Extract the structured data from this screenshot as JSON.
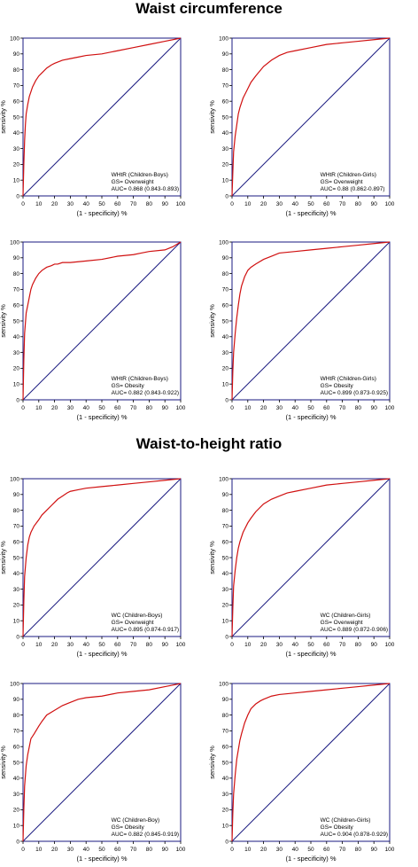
{
  "sections": [
    {
      "title": "Waist circumference"
    },
    {
      "title": "Waist-to-height ratio"
    }
  ],
  "colors": {
    "curve": "#d01010",
    "diagonal": "#1a1a80",
    "frame": "#1a1a80"
  },
  "chart_data": [
    {
      "type": "line",
      "xlabel": "(1 - specificity) %",
      "ylabel": "sensivity %",
      "xlim": [
        0,
        100
      ],
      "ylim": [
        0,
        100
      ],
      "xticks": [
        0,
        10,
        20,
        30,
        40,
        50,
        60,
        70,
        80,
        90,
        100
      ],
      "yticks": [
        0,
        10,
        20,
        30,
        40,
        50,
        60,
        70,
        80,
        90,
        100
      ],
      "annotation": [
        "WHtR (Children-Boys)",
        "GS= Overweight",
        "AUC= 0.868 (0.843-0.893)"
      ],
      "series": [
        {
          "x": [
            0,
            0.5,
            1,
            1.5,
            2,
            3,
            4,
            5,
            6,
            8,
            10,
            12,
            15,
            18,
            20,
            25,
            30,
            35,
            40,
            50,
            60,
            70,
            80,
            90,
            100
          ],
          "y": [
            0,
            20,
            35,
            45,
            52,
            58,
            63,
            66,
            69,
            73,
            76,
            78,
            81,
            83,
            84,
            86,
            87,
            88,
            89,
            90,
            92,
            94,
            96,
            98,
            100
          ]
        }
      ]
    },
    {
      "type": "line",
      "xlabel": "(1 - specificity) %",
      "ylabel": "sensivity %",
      "xlim": [
        0,
        100
      ],
      "ylim": [
        0,
        100
      ],
      "xticks": [
        0,
        10,
        20,
        30,
        40,
        50,
        60,
        70,
        80,
        90,
        100
      ],
      "yticks": [
        0,
        10,
        20,
        30,
        40,
        50,
        60,
        70,
        80,
        90,
        100
      ],
      "annotation": [
        "WHtR (Children-Girls)",
        "GS= Overweight",
        "AUC= 0.88 (0.862-0.897)"
      ],
      "series": [
        {
          "x": [
            0,
            0.5,
            1,
            2,
            3,
            4,
            5,
            7,
            10,
            12,
            15,
            20,
            25,
            30,
            35,
            40,
            50,
            60,
            70,
            80,
            90,
            100
          ],
          "y": [
            0,
            15,
            28,
            38,
            45,
            52,
            56,
            62,
            68,
            72,
            76,
            82,
            86,
            89,
            91,
            92,
            94,
            96,
            97,
            98,
            99,
            100
          ]
        }
      ]
    },
    {
      "type": "line",
      "xlabel": "(1 - specificity) %",
      "ylabel": "sensivity %",
      "xlim": [
        0,
        100
      ],
      "ylim": [
        0,
        100
      ],
      "xticks": [
        0,
        10,
        20,
        30,
        40,
        50,
        60,
        70,
        80,
        90,
        100
      ],
      "yticks": [
        0,
        10,
        20,
        30,
        40,
        50,
        60,
        70,
        80,
        90,
        100
      ],
      "annotation": [
        "WHtR (Children-Boys)",
        "GS= Obesity",
        "AUC= 0.882 (0.843-0.922)"
      ],
      "series": [
        {
          "x": [
            0,
            0.5,
            1,
            2,
            3,
            4,
            5,
            6,
            8,
            10,
            12,
            15,
            18,
            20,
            22,
            25,
            30,
            40,
            50,
            60,
            70,
            75,
            80,
            90,
            95,
            100
          ],
          "y": [
            0,
            25,
            42,
            55,
            60,
            65,
            70,
            73,
            77,
            80,
            82,
            84,
            85,
            86,
            86,
            87,
            87,
            88,
            89,
            91,
            92,
            93,
            94,
            95,
            97,
            100
          ]
        }
      ]
    },
    {
      "type": "line",
      "xlabel": "(1 - specificity) %",
      "ylabel": "sensivity %",
      "xlim": [
        0,
        100
      ],
      "ylim": [
        0,
        100
      ],
      "xticks": [
        0,
        10,
        20,
        30,
        40,
        50,
        60,
        70,
        80,
        90,
        100
      ],
      "yticks": [
        0,
        10,
        20,
        30,
        40,
        50,
        60,
        70,
        80,
        90,
        100
      ],
      "annotation": [
        "WHtR (Children-Girls)",
        "GS= Obesity",
        "AUC= 0.899 (0.873-0.925)"
      ],
      "series": [
        {
          "x": [
            0,
            0.5,
            1,
            2,
            3,
            4,
            5,
            6,
            8,
            10,
            12,
            15,
            20,
            25,
            30,
            40,
            50,
            60,
            70,
            80,
            90,
            100
          ],
          "y": [
            0,
            18,
            30,
            42,
            52,
            60,
            67,
            72,
            78,
            82,
            84,
            86,
            89,
            91,
            93,
            94,
            95,
            96,
            97,
            98,
            99,
            100
          ]
        }
      ]
    },
    {
      "type": "line",
      "xlabel": "(1 - specificity) %",
      "ylabel": "sensivity %",
      "xlim": [
        0,
        100
      ],
      "ylim": [
        0,
        100
      ],
      "xticks": [
        0,
        10,
        20,
        30,
        40,
        50,
        60,
        70,
        80,
        90,
        100
      ],
      "yticks": [
        0,
        10,
        20,
        30,
        40,
        50,
        60,
        70,
        80,
        90,
        100
      ],
      "annotation": [
        "WC (Children-Boys)",
        "GS= Overweight",
        "AUC= 0.895 (0.874-0.917)"
      ],
      "series": [
        {
          "x": [
            0,
            0.5,
            1,
            2,
            3,
            4,
            5,
            7,
            10,
            12,
            15,
            18,
            20,
            22,
            25,
            28,
            30,
            35,
            40,
            50,
            60,
            70,
            80,
            90,
            100
          ],
          "y": [
            0,
            22,
            38,
            50,
            58,
            63,
            66,
            70,
            74,
            77,
            80,
            83,
            85,
            87,
            89,
            91,
            92,
            93,
            94,
            95,
            96,
            97,
            98,
            99,
            100
          ]
        }
      ]
    },
    {
      "type": "line",
      "xlabel": "(1 - specificity) %",
      "ylabel": "sensivity %",
      "xlim": [
        0,
        100
      ],
      "ylim": [
        0,
        100
      ],
      "xticks": [
        0,
        10,
        20,
        30,
        40,
        50,
        60,
        70,
        80,
        90,
        100
      ],
      "yticks": [
        0,
        10,
        20,
        30,
        40,
        50,
        60,
        70,
        80,
        90,
        100
      ],
      "annotation": [
        "WC (Children-Girls)",
        "GS= Overweight",
        "AUC= 0.889 (0.872-0.906)"
      ],
      "series": [
        {
          "x": [
            0,
            0.5,
            1,
            2,
            3,
            4,
            5,
            7,
            10,
            12,
            15,
            20,
            25,
            30,
            35,
            40,
            50,
            60,
            70,
            80,
            90,
            100
          ],
          "y": [
            0,
            18,
            32,
            42,
            50,
            56,
            60,
            66,
            72,
            75,
            79,
            84,
            87,
            89,
            91,
            92,
            94,
            96,
            97,
            98,
            99,
            100
          ]
        }
      ]
    },
    {
      "type": "line",
      "xlabel": "(1 - specificity) %",
      "ylabel": "sensivity %",
      "xlim": [
        0,
        100
      ],
      "ylim": [
        0,
        100
      ],
      "xticks": [
        0,
        10,
        20,
        30,
        40,
        50,
        60,
        70,
        80,
        90,
        100
      ],
      "yticks": [
        0,
        10,
        20,
        30,
        40,
        50,
        60,
        70,
        80,
        90,
        100
      ],
      "annotation": [
        "WC (Children-Boy)",
        "GS= Obesity",
        "AUC= 0.882 (0.845-0.919)"
      ],
      "series": [
        {
          "x": [
            0,
            0.5,
            1,
            2,
            3,
            4,
            5,
            7,
            10,
            12,
            15,
            20,
            25,
            30,
            35,
            40,
            50,
            60,
            70,
            80,
            90,
            95,
            100
          ],
          "y": [
            0,
            20,
            35,
            48,
            55,
            60,
            65,
            68,
            73,
            76,
            80,
            83,
            86,
            88,
            90,
            91,
            92,
            94,
            95,
            96,
            98,
            99,
            100
          ]
        }
      ]
    },
    {
      "type": "line",
      "xlabel": "(1 - specificity) %",
      "ylabel": "sensivity %",
      "xlim": [
        0,
        100
      ],
      "ylim": [
        0,
        100
      ],
      "xticks": [
        0,
        10,
        20,
        30,
        40,
        50,
        60,
        70,
        80,
        90,
        100
      ],
      "yticks": [
        0,
        10,
        20,
        30,
        40,
        50,
        60,
        70,
        80,
        90,
        100
      ],
      "annotation": [
        "WC (Children-Girls)",
        "GS= Obesity",
        "AUC= 0.904 (0.878-0.929)"
      ],
      "series": [
        {
          "x": [
            0,
            0.5,
            1,
            2,
            3,
            4,
            5,
            6,
            8,
            10,
            12,
            15,
            18,
            20,
            25,
            30,
            40,
            50,
            60,
            70,
            80,
            90,
            100
          ],
          "y": [
            0,
            18,
            30,
            42,
            52,
            58,
            64,
            68,
            75,
            80,
            84,
            87,
            89,
            90,
            92,
            93,
            94,
            95,
            96,
            97,
            98,
            99,
            100
          ]
        }
      ]
    }
  ]
}
